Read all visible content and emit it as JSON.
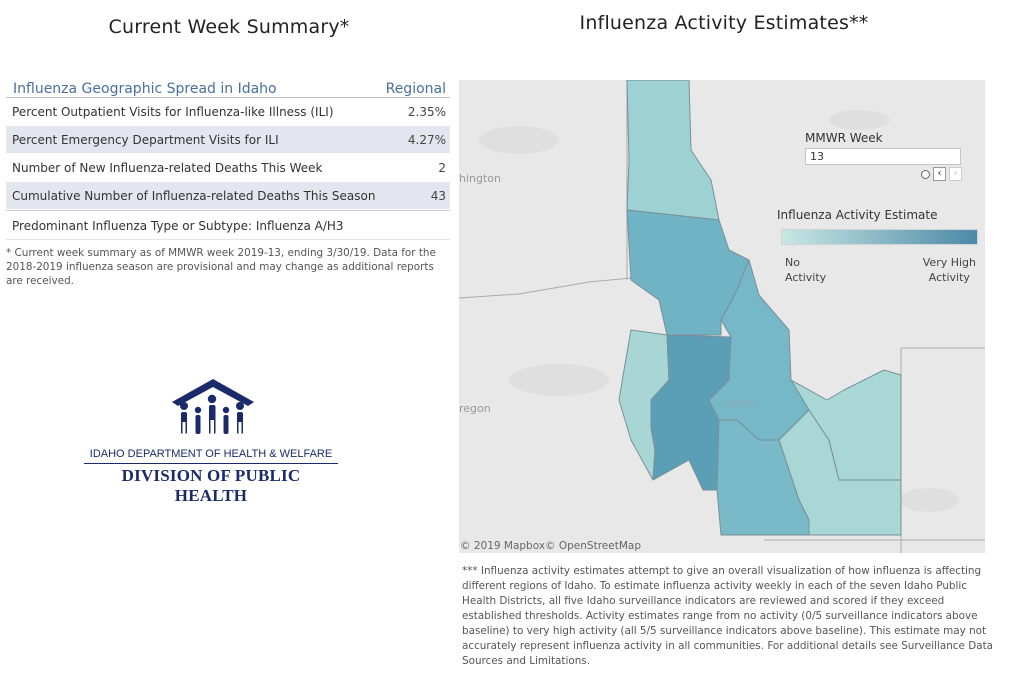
{
  "summary": {
    "title": "Current Week Summary*",
    "table": {
      "header_left": "Influenza Geographic Spread in Idaho",
      "header_right": "Regional",
      "rows": [
        {
          "label": "Percent Outpatient Visits for Influenza-like Illness (ILI)",
          "value": "2.35%"
        },
        {
          "label": "Percent Emergency Department Visits for ILI",
          "value": "4.27%"
        },
        {
          "label": "Number of New Influenza-related Deaths This Week",
          "value": "2"
        },
        {
          "label": "Cumulative Number of Influenza-related Deaths This Season",
          "value": "43"
        }
      ],
      "predominant": "Predominant Influenza Type or Subtype: Influenza A/H3"
    },
    "footnote": "* Current week summary as of MMWR week 2019-13, ending 3/30/19. Data for the 2018-2019 influenza season are provisional and may change as additional reports are received."
  },
  "logo": {
    "line1": "IDAHO DEPARTMENT OF HEALTH & WELFARE",
    "line2": "DIVISION OF PUBLIC HEALTH"
  },
  "map": {
    "title": "Influenza Activity Estimates**",
    "labels": {
      "washington": "hington",
      "oregon": "regon",
      "idaho": "Idaho"
    },
    "attribution": "© 2019 Mapbox© OpenStreetMap",
    "week": {
      "label": "MMWR Week",
      "value": "13",
      "prev": "‹",
      "next": "›"
    },
    "legend": {
      "title": "Influenza Activity Estimate",
      "low_line1": "No",
      "low_line2": "Activity",
      "high_line1": "Very High",
      "high_line2": "Activity",
      "low_color": "#c9e7e4",
      "high_color": "#4c89a8"
    },
    "districts": [
      {
        "district": "1",
        "level": "moderate",
        "color": "#9ed1d3"
      },
      {
        "district": "2",
        "level": "high",
        "color": "#6fb3c4"
      },
      {
        "district": "3",
        "level": "low",
        "color": "#a7d6d5"
      },
      {
        "district": "4",
        "level": "very high",
        "color": "#5b9fb7"
      },
      {
        "district": "5",
        "level": "high",
        "color": "#77b8c8"
      },
      {
        "district": "6",
        "level": "low",
        "color": "#a8d7d6"
      },
      {
        "district": "7",
        "level": "high",
        "color": "#79b9c8"
      }
    ],
    "footnote": "*** Influenza activity estimates attempt to give an overall visualization of how influenza is affecting different regions of Idaho. To estimate influenza activity weekly in each of the seven Idaho Public Health Districts, all five Idaho surveillance indicators are reviewed and scored if they exceed established thresholds. Activity estimates range from no activity (0/5 surveillance indicators above baseline) to very high activity (all 5/5 surveillance indicators above baseline). This estimate may not accurately represent influenza activity in all communities. For additional details see Surveillance Data Sources and Limitations."
  }
}
